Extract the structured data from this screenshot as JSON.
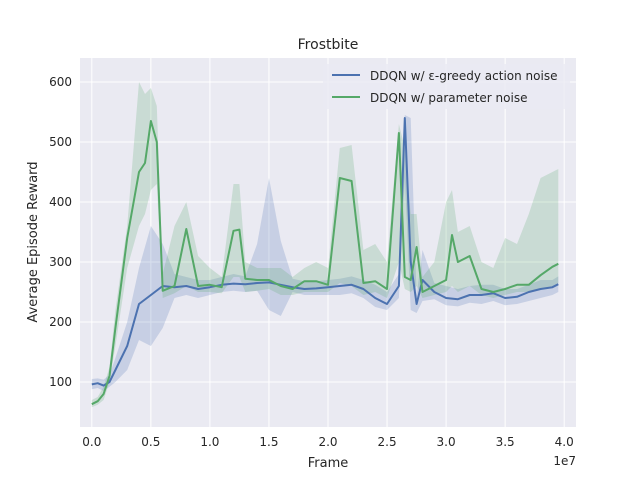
{
  "chart_data": {
    "type": "line",
    "title": "Frostbite",
    "xlabel": "Frame",
    "ylabel": "Average Episode Reward",
    "x_offset_label": "1e7",
    "xlim": [
      -0.1,
      4.1
    ],
    "ylim": [
      25,
      640
    ],
    "x_ticks": [
      0.0,
      0.5,
      1.0,
      1.5,
      2.0,
      2.5,
      3.0,
      3.5,
      4.0
    ],
    "x_tick_labels": [
      "0.0",
      "0.5",
      "1.0",
      "1.5",
      "2.0",
      "2.5",
      "3.0",
      "3.5",
      "4.0"
    ],
    "y_ticks": [
      100,
      200,
      300,
      400,
      500,
      600
    ],
    "y_tick_labels": [
      "100",
      "200",
      "300",
      "400",
      "500",
      "600"
    ],
    "grid": true,
    "legend_position": "top-right",
    "series": [
      {
        "name": "DDQN w/ ε-greedy action noise",
        "color": "#4c72b0",
        "x": [
          0.0,
          0.05,
          0.1,
          0.15,
          0.2,
          0.3,
          0.4,
          0.5,
          0.6,
          0.7,
          0.8,
          0.9,
          1.0,
          1.1,
          1.2,
          1.3,
          1.4,
          1.5,
          1.6,
          1.7,
          1.8,
          1.9,
          2.0,
          2.1,
          2.2,
          2.3,
          2.4,
          2.5,
          2.6,
          2.65,
          2.7,
          2.75,
          2.8,
          2.9,
          3.0,
          3.1,
          3.2,
          3.3,
          3.4,
          3.5,
          3.6,
          3.7,
          3.8,
          3.9,
          3.95
        ],
        "y": [
          96,
          98,
          94,
          100,
          120,
          160,
          230,
          245,
          260,
          258,
          260,
          255,
          258,
          262,
          264,
          263,
          265,
          266,
          262,
          258,
          255,
          256,
          258,
          260,
          262,
          255,
          240,
          230,
          260,
          540,
          300,
          230,
          270,
          250,
          240,
          238,
          245,
          245,
          248,
          240,
          242,
          250,
          255,
          258,
          263
        ],
        "lower": [
          88,
          90,
          85,
          92,
          100,
          120,
          170,
          160,
          190,
          240,
          245,
          240,
          245,
          250,
          252,
          250,
          252,
          220,
          210,
          250,
          245,
          245,
          245,
          245,
          248,
          240,
          225,
          220,
          240,
          440,
          220,
          215,
          235,
          238,
          228,
          226,
          232,
          230,
          235,
          228,
          230,
          235,
          240,
          245,
          250
        ],
        "upper": [
          105,
          106,
          104,
          112,
          140,
          200,
          290,
          360,
          330,
          280,
          275,
          270,
          270,
          275,
          280,
          276,
          330,
          440,
          335,
          272,
          268,
          268,
          270,
          272,
          276,
          270,
          262,
          250,
          280,
          545,
          540,
          245,
          320,
          265,
          260,
          255,
          260,
          262,
          262,
          255,
          255,
          262,
          270,
          270,
          276
        ]
      },
      {
        "name": "DDQN w/ parameter noise",
        "color": "#55a868",
        "x": [
          0.0,
          0.05,
          0.1,
          0.15,
          0.2,
          0.3,
          0.4,
          0.45,
          0.5,
          0.55,
          0.6,
          0.7,
          0.8,
          0.9,
          1.0,
          1.1,
          1.2,
          1.25,
          1.3,
          1.4,
          1.5,
          1.6,
          1.7,
          1.8,
          1.9,
          2.0,
          2.1,
          2.2,
          2.3,
          2.4,
          2.5,
          2.6,
          2.65,
          2.7,
          2.75,
          2.8,
          2.9,
          3.0,
          3.05,
          3.1,
          3.2,
          3.3,
          3.4,
          3.5,
          3.6,
          3.7,
          3.8,
          3.9,
          3.95
        ],
        "y": [
          63,
          68,
          80,
          110,
          190,
          340,
          450,
          465,
          535,
          500,
          252,
          260,
          355,
          260,
          262,
          258,
          352,
          354,
          272,
          270,
          270,
          260,
          255,
          268,
          268,
          262,
          440,
          435,
          265,
          268,
          255,
          515,
          275,
          270,
          325,
          250,
          260,
          270,
          345,
          300,
          310,
          255,
          250,
          255,
          262,
          262,
          278,
          292,
          297
        ],
        "lower": [
          58,
          62,
          70,
          100,
          160,
          290,
          360,
          380,
          420,
          430,
          240,
          248,
          260,
          250,
          250,
          248,
          275,
          275,
          250,
          252,
          255,
          245,
          245,
          250,
          250,
          250,
          265,
          260,
          245,
          250,
          240,
          300,
          255,
          250,
          260,
          240,
          245,
          250,
          260,
          250,
          260,
          245,
          240,
          245,
          250,
          250,
          255,
          260,
          265
        ],
        "upper": [
          70,
          75,
          92,
          125,
          220,
          360,
          600,
          580,
          590,
          560,
          280,
          360,
          400,
          310,
          290,
          275,
          430,
          430,
          300,
          290,
          290,
          290,
          275,
          290,
          300,
          290,
          490,
          495,
          320,
          330,
          300,
          530,
          490,
          380,
          380,
          275,
          300,
          400,
          420,
          350,
          360,
          300,
          290,
          340,
          330,
          380,
          440,
          450,
          455
        ]
      }
    ]
  }
}
